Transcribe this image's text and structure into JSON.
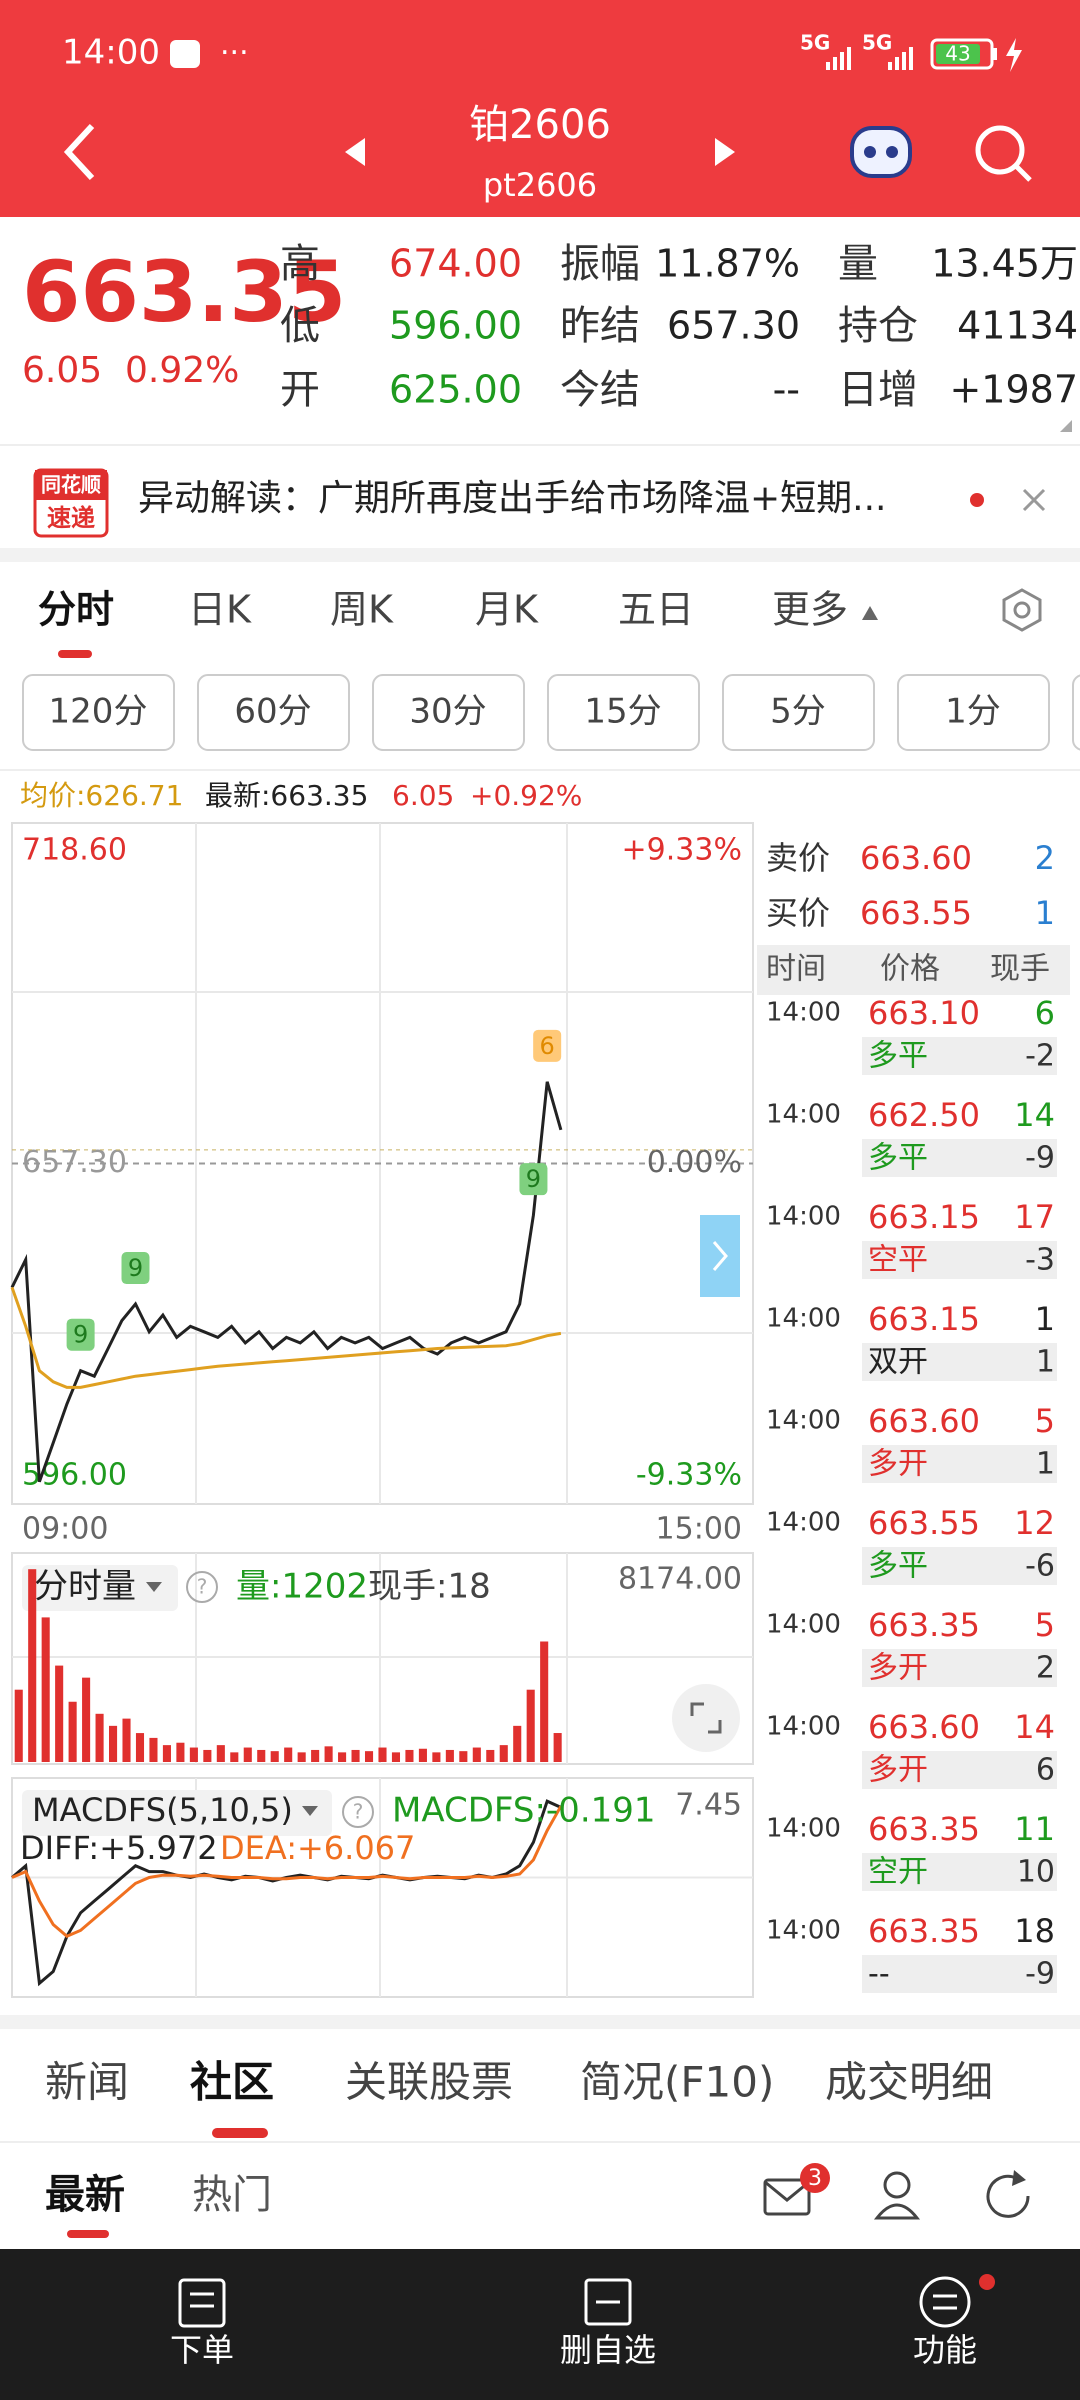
{
  "status_bar": {
    "time": "14:00",
    "network": [
      "5G",
      "5G"
    ],
    "battery": "43"
  },
  "header": {
    "title": "铂2606",
    "subtitle": "pt2606"
  },
  "quote": {
    "price": "663.35",
    "change": "6.05",
    "change_pct": "0.92%",
    "fields": [
      {
        "label": "高",
        "value": "674.00",
        "color": "#e0302e"
      },
      {
        "label": "振幅",
        "value": "11.87%",
        "color": "#222222"
      },
      {
        "label": "量",
        "value": "13.45万",
        "color": "#222222"
      },
      {
        "label": "低",
        "value": "596.00",
        "color": "#1e9a1e"
      },
      {
        "label": "昨结",
        "value": "657.30",
        "color": "#222222"
      },
      {
        "label": "持仓",
        "value": "41134",
        "color": "#222222"
      },
      {
        "label": "开",
        "value": "625.00",
        "color": "#1e9a1e"
      },
      {
        "label": "今结",
        "value": "--",
        "color": "#222222"
      },
      {
        "label": "日增",
        "value": "+1987",
        "color": "#222222"
      }
    ]
  },
  "news": {
    "logo": [
      "同花顺",
      "速递"
    ],
    "text": "异动解读：广期所再度出手给市场降温+短期..."
  },
  "tabs": {
    "items": [
      "分时",
      "日K",
      "周K",
      "月K",
      "五日",
      "更多"
    ],
    "active": 0
  },
  "periods": [
    "120分",
    "60分",
    "30分",
    "15分",
    "5分",
    "1分"
  ],
  "legend": {
    "avg": "均价:626.71",
    "last": "最新:663.35",
    "change": "6.05",
    "change_pct": "+0.92%"
  },
  "chart_data": [
    {
      "type": "line",
      "categories": [
        "09:00",
        null,
        null,
        null,
        null,
        null,
        null,
        null,
        null,
        null,
        null,
        null,
        null,
        null,
        null,
        null,
        null,
        null,
        null,
        null,
        null,
        null,
        null,
        null,
        null,
        null,
        null,
        null,
        null,
        null,
        null,
        null,
        null,
        null,
        null,
        null,
        null,
        null,
        null,
        null,
        null,
        null,
        null,
        null,
        null,
        null,
        null,
        null,
        null,
        null,
        null,
        null,
        null,
        null,
        "15:00"
      ],
      "series": [
        {
          "name": "最新",
          "color": "#222222",
          "values": [
            635,
            640,
            600,
            607,
            614,
            620,
            619,
            624,
            629,
            632,
            627,
            630,
            626,
            628,
            627,
            626,
            628,
            625,
            627,
            624,
            626,
            625,
            627,
            624,
            626,
            625,
            626,
            624,
            625,
            626,
            624,
            623,
            625,
            626,
            625,
            626,
            627,
            632,
            648,
            672,
            663.35,
            null,
            null,
            null,
            null,
            null,
            null,
            null,
            null,
            null,
            null,
            null,
            null,
            null,
            null
          ]
        },
        {
          "name": "均价",
          "color": "#e0a020",
          "values": [
            635,
            628,
            620,
            618,
            617,
            617,
            617.5,
            618,
            618.5,
            619,
            619.3,
            619.6,
            619.9,
            620.2,
            620.5,
            620.8,
            621,
            621.2,
            621.4,
            621.6,
            621.8,
            622,
            622.2,
            622.4,
            622.6,
            622.8,
            623,
            623.2,
            623.4,
            623.6,
            623.8,
            624,
            624.1,
            624.2,
            624.3,
            624.4,
            624.5,
            624.9,
            625.6,
            626.3,
            626.71,
            null,
            null,
            null,
            null,
            null,
            null,
            null,
            null,
            null,
            null,
            null,
            null,
            null,
            null
          ]
        }
      ],
      "ylim": [
        596,
        718.6
      ],
      "yticks": [
        {
          "value": 718.6,
          "label": "718.60"
        },
        {
          "value": 657.3,
          "label": "657.30"
        },
        {
          "value": 596,
          "label": "596.00"
        }
      ],
      "y2lim": [
        -9.33,
        9.33
      ],
      "y2ticks": [
        {
          "value": 9.33,
          "label": "+9.33%"
        },
        {
          "value": 0,
          "label": "0.00%"
        },
        {
          "value": -9.33,
          "label": "-9.33%"
        }
      ],
      "annotations": [
        {
          "x": 5,
          "label": "9",
          "color": "#7fd07f"
        },
        {
          "x": 9,
          "label": "9",
          "color": "#7fd07f"
        },
        {
          "x": 38,
          "label": "9",
          "color": "#7fd07f"
        },
        {
          "x": 39,
          "label": "6",
          "color": "#ffc978"
        }
      ]
    },
    {
      "type": "bar",
      "title": "分时量",
      "volume_label": "量:1202",
      "hand_label": "现手:18",
      "color": "#e0302e",
      "values": [
        3000,
        8000,
        6000,
        4000,
        2500,
        3500,
        2000,
        1500,
        1800,
        1200,
        1000,
        700,
        800,
        600,
        500,
        700,
        400,
        600,
        500,
        450,
        600,
        400,
        500,
        650,
        400,
        500,
        450,
        600,
        400,
        500,
        550,
        400,
        500,
        450,
        600,
        500,
        700,
        1500,
        3000,
        5000,
        1202,
        null,
        null,
        null,
        null,
        null,
        null,
        null,
        null,
        null,
        null,
        null,
        null,
        null,
        null
      ],
      "ylim": [
        0,
        8174
      ],
      "yticks": [
        {
          "value": 8174,
          "label": "8174.00"
        }
      ]
    },
    {
      "type": "line",
      "title": "MACDFS(5,10,5)",
      "value_label": "MACDFS:-0.191",
      "series": [
        {
          "name": "DIFF:+5.972",
          "color": "#222222",
          "values": [
            0,
            1,
            -9,
            -8,
            -5,
            -3,
            -2,
            -1,
            0,
            1,
            0.5,
            0.5,
            0.2,
            0,
            0.3,
            0,
            -0.2,
            0.1,
            0,
            -0.3,
            0,
            0.2,
            0,
            -0.2,
            0.1,
            0,
            -0.1,
            0.2,
            0,
            -0.2,
            0,
            0.1,
            0,
            -0.1,
            0.2,
            0,
            0.3,
            1,
            3,
            6.5,
            5.972,
            null,
            null,
            null,
            null,
            null,
            null,
            null,
            null,
            null,
            null,
            null,
            null,
            null,
            null
          ]
        },
        {
          "name": "DEA:+6.067",
          "color": "#f07020",
          "values": [
            0,
            0.5,
            -2,
            -4,
            -5,
            -4.5,
            -3.5,
            -2.5,
            -1.5,
            -0.5,
            0,
            0.2,
            0.2,
            0.1,
            0.2,
            0.1,
            0,
            0,
            0,
            -0.1,
            -0.1,
            0,
            0,
            -0.1,
            0,
            0,
            0,
            0.1,
            0,
            -0.1,
            0,
            0,
            0,
            0,
            0.1,
            0,
            0.1,
            0.3,
            1.5,
            4,
            6.067,
            null,
            null,
            null,
            null,
            null,
            null,
            null,
            null,
            null,
            null,
            null,
            null,
            null,
            null
          ]
        }
      ],
      "ylim": [
        -10,
        7.45
      ],
      "yticks": [
        7.45
      ]
    }
  ],
  "order_book": {
    "ask": {
      "label": "卖价",
      "price": "663.60",
      "qty": "2"
    },
    "bid": {
      "label": "买价",
      "price": "663.55",
      "qty": "1"
    },
    "columns": [
      "时间",
      "价格",
      "现手"
    ],
    "ticks": [
      {
        "time": "14:00",
        "price": "663.10",
        "qty": "6",
        "qty_color": "#1e9a1e",
        "kind": "多平",
        "kind_color": "#1e9a1e",
        "delta": "-2"
      },
      {
        "time": "14:00",
        "price": "662.50",
        "qty": "14",
        "qty_color": "#1e9a1e",
        "kind": "多平",
        "kind_color": "#1e9a1e",
        "delta": "-9"
      },
      {
        "time": "14:00",
        "price": "663.15",
        "qty": "17",
        "qty_color": "#e0302e",
        "kind": "空平",
        "kind_color": "#e0302e",
        "delta": "-3"
      },
      {
        "time": "14:00",
        "price": "663.15",
        "qty": "1",
        "qty_color": "#222222",
        "kind": "双开",
        "kind_color": "#222222",
        "delta": "1"
      },
      {
        "time": "14:00",
        "price": "663.60",
        "qty": "5",
        "qty_color": "#e0302e",
        "kind": "多开",
        "kind_color": "#e0302e",
        "delta": "1"
      },
      {
        "time": "14:00",
        "price": "663.55",
        "qty": "12",
        "qty_color": "#e0302e",
        "kind": "多平",
        "kind_color": "#1e9a1e",
        "delta": "-6"
      },
      {
        "time": "14:00",
        "price": "663.35",
        "qty": "5",
        "qty_color": "#e0302e",
        "kind": "多开",
        "kind_color": "#e0302e",
        "delta": "2"
      },
      {
        "time": "14:00",
        "price": "663.60",
        "qty": "14",
        "qty_color": "#e0302e",
        "kind": "多开",
        "kind_color": "#e0302e",
        "delta": "6"
      },
      {
        "time": "14:00",
        "price": "663.35",
        "qty": "11",
        "qty_color": "#1e9a1e",
        "kind": "空开",
        "kind_color": "#1e9a1e",
        "delta": "10"
      },
      {
        "time": "14:00",
        "price": "663.35",
        "qty": "18",
        "qty_color": "#222222",
        "kind": "--",
        "kind_color": "#222222",
        "delta": "-9"
      }
    ]
  },
  "bottom_tabs": {
    "items": [
      "新闻",
      "社区",
      "关联股票",
      "简况(F10)",
      "成交明细"
    ],
    "active": 1
  },
  "sub_tabs": {
    "items": [
      "最新",
      "热门"
    ],
    "active": 0,
    "mail_badge": "3"
  },
  "nav": [
    "下单",
    "删自选",
    "功能"
  ]
}
